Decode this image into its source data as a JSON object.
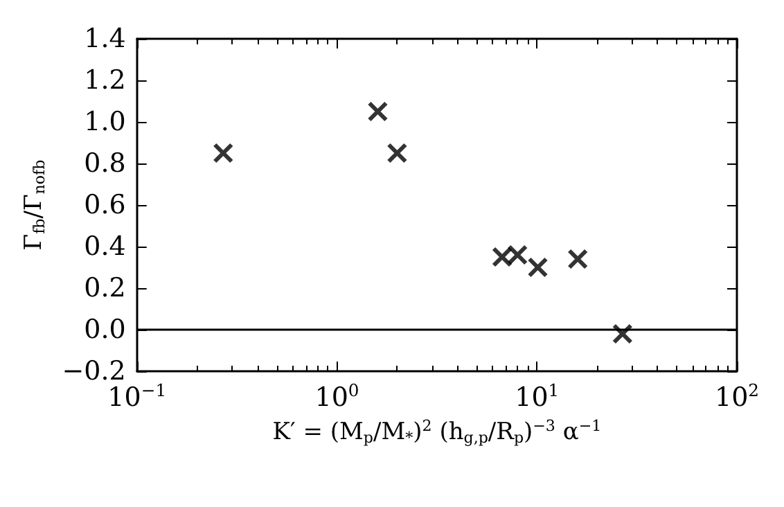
{
  "chart_data": {
    "type": "scatter",
    "xlabel": "K′ = (M$_{p}$/M$_{*}$)$^{2}$ (h$_{g,p}$/R$_{p}$)$^{−3}$ α$^{−1}$",
    "ylabel": "Γ$_{fb}$/Γ$_{nofb}$",
    "x": [
      0.27,
      1.6,
      2.0,
      6.7,
      8.0,
      10.1,
      16.0,
      26.8
    ],
    "series": [
      {
        "color": "#000000",
        "values": [
          0.85,
          1.05,
          0.85,
          0.35,
          0.36,
          0.3,
          0.34,
          -0.02
        ]
      }
    ],
    "marker": "cross",
    "log": "x",
    "grid": false,
    "xlim": [
      0.1,
      100
    ],
    "xticks": [
      {
        "value": 0.1,
        "label": "10$^{−1}$"
      },
      {
        "value": 1,
        "label": "10$^{0}$"
      },
      {
        "value": 10,
        "label": "10$^{1}$"
      },
      {
        "value": 100,
        "label": "10$^{2}$"
      }
    ],
    "ylim": [
      -0.2,
      1.4
    ],
    "yticks": [
      {
        "value": -0.2,
        "label": "−0.2"
      },
      {
        "value": 0,
        "label": "0.0"
      },
      {
        "value": 0.2,
        "label": "0.2"
      },
      {
        "value": 0.4,
        "label": "0.4"
      },
      {
        "value": 0.6,
        "label": "0.6"
      },
      {
        "value": 0.8,
        "label": "0.8"
      },
      {
        "value": 1,
        "label": "1.0"
      },
      {
        "value": 1.2,
        "label": "1.2"
      },
      {
        "value": 1.4,
        "label": "1.4"
      }
    ],
    "ref_lines": [
      {
        "axis": "y",
        "value": 0,
        "color": "#000000"
      }
    ]
  }
}
